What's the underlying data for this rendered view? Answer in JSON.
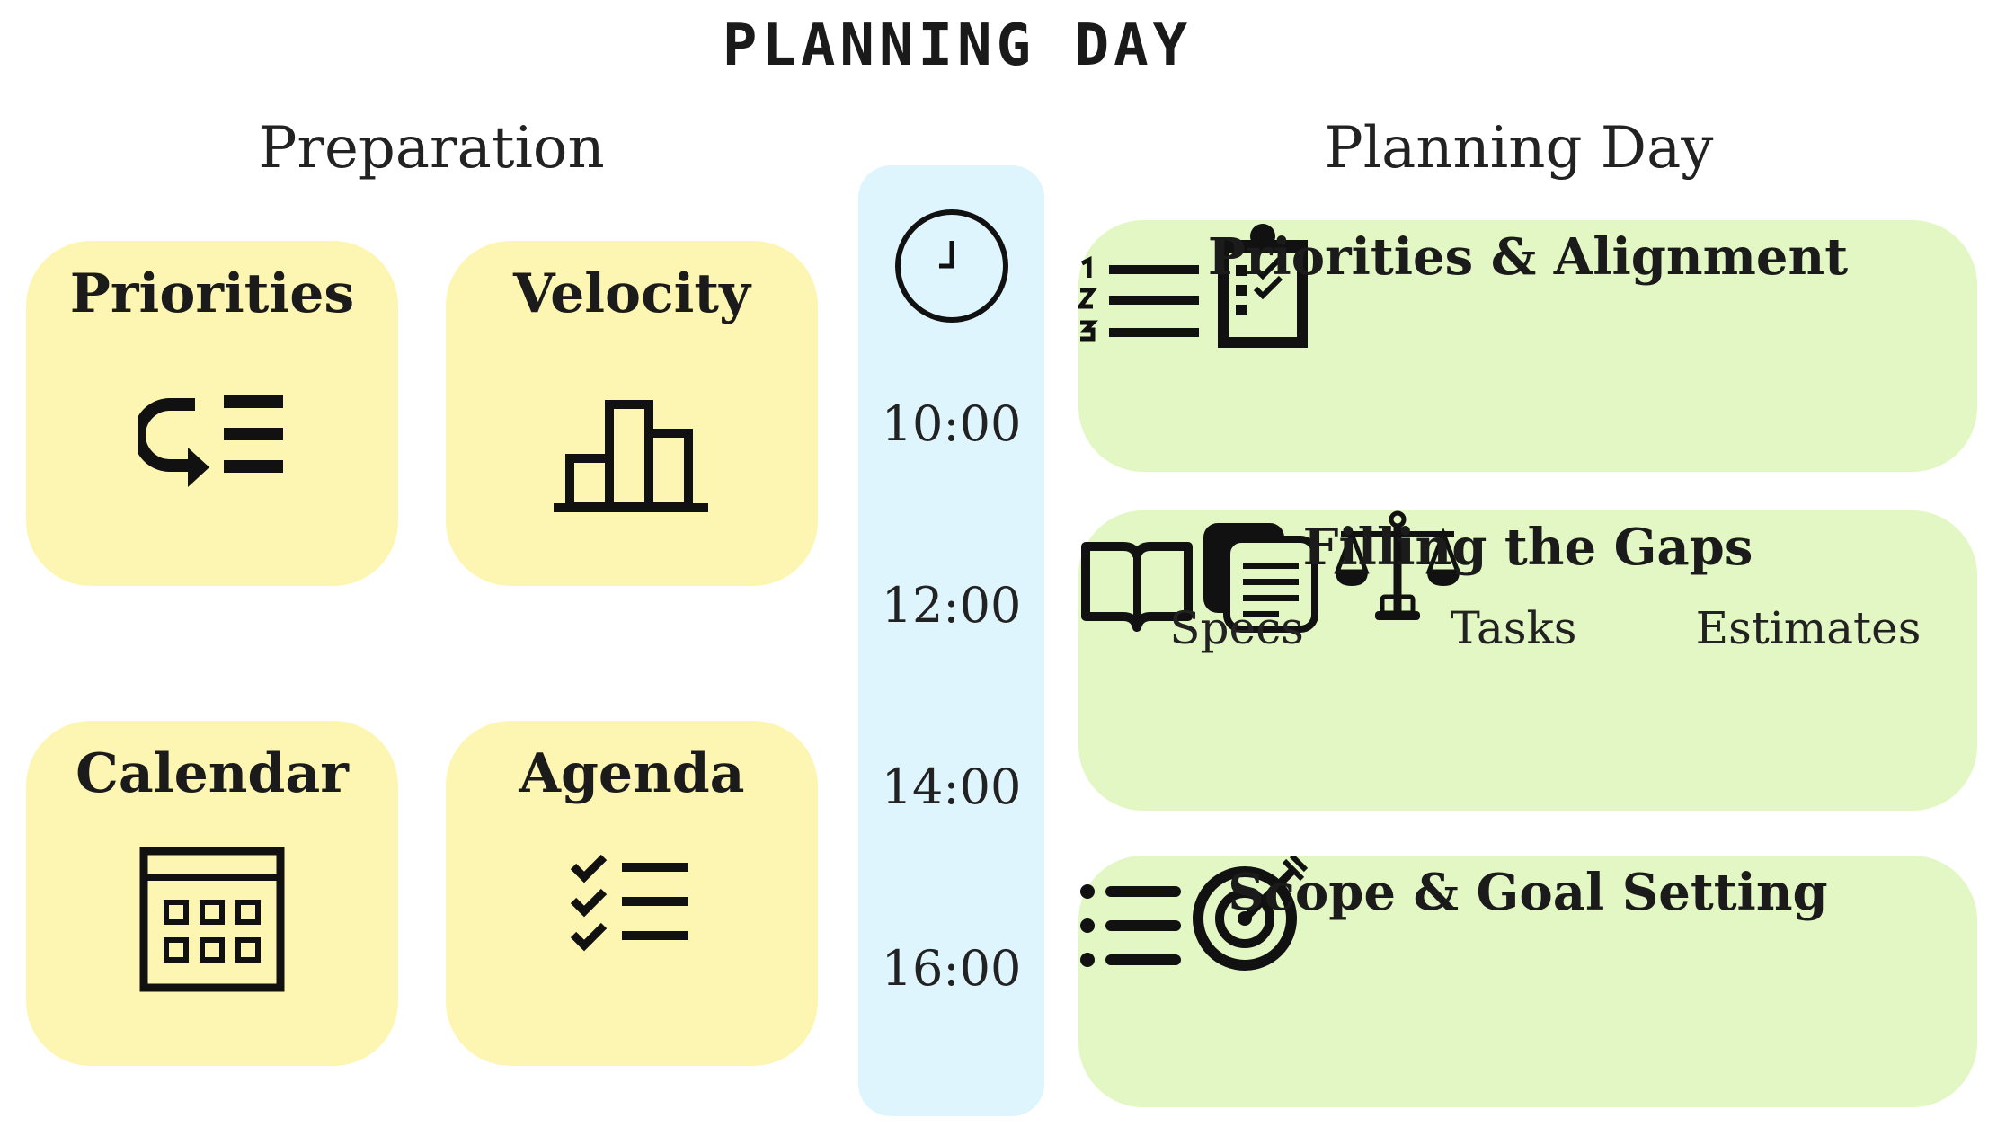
{
  "title": "PLANNING DAY",
  "preparation": {
    "heading": "Preparation",
    "cards": [
      {
        "label": "Priorities",
        "icon": "reorder-list-icon"
      },
      {
        "label": "Velocity",
        "icon": "bar-chart-icon"
      },
      {
        "label": "Calendar",
        "icon": "calendar-icon"
      },
      {
        "label": "Agenda",
        "icon": "checklist-icon"
      }
    ]
  },
  "timeline": {
    "icon": "clock-icon",
    "times": [
      "10:00",
      "12:00",
      "14:00",
      "16:00"
    ]
  },
  "planning_day": {
    "heading": "Planning Day",
    "blocks": [
      {
        "label": "Priorities & Alignment",
        "icons": [
          "numbered-list-icon",
          "clipboard-checklist-icon"
        ]
      },
      {
        "label": "Filling the Gaps",
        "items": [
          {
            "label": "Specs",
            "icon": "book-icon"
          },
          {
            "label": "Tasks",
            "icon": "documents-icon"
          },
          {
            "label": "Estimates",
            "icon": "scales-icon"
          }
        ]
      },
      {
        "label": "Scope & Goal Setting",
        "icons": [
          "bullet-list-icon",
          "target-icon"
        ]
      }
    ]
  },
  "colors": {
    "prep_card": "#fdf6b2",
    "timeline": "#dff5fd",
    "planning_card": "#e2f7c3"
  }
}
